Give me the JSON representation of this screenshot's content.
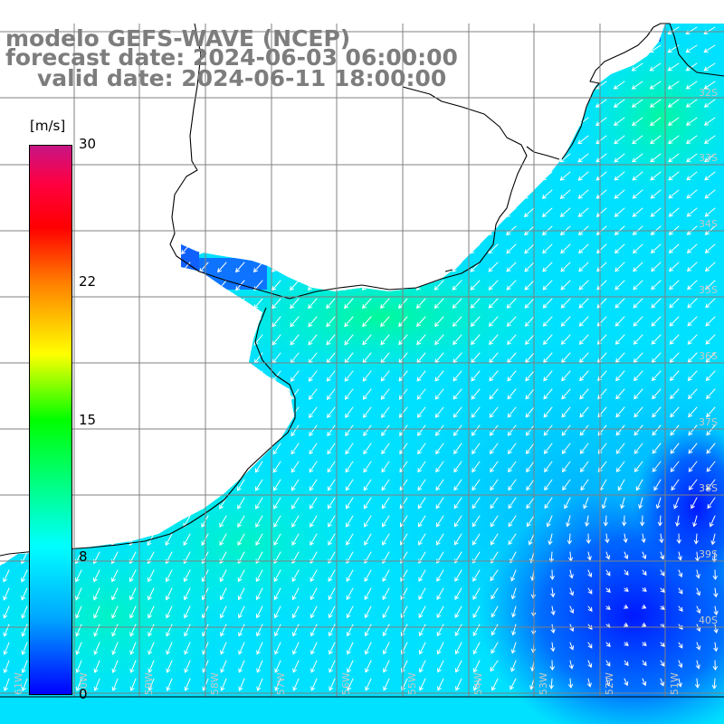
{
  "title": {
    "model": "modelo GEFS-WAVE (NCEP)",
    "forecast": "forecast date: 2024-06-03 06:00:00",
    "valid": "valid date: 2024-06-11 18:00:00"
  },
  "colorbar": {
    "unit": "[m/s]",
    "min": 0,
    "max": 30,
    "ticks": [
      {
        "value": 30,
        "label": "30"
      },
      {
        "value": 22,
        "label": "22"
      },
      {
        "value": 15,
        "label": "15"
      },
      {
        "value": 8,
        "label": "8"
      },
      {
        "value": 0,
        "label": "0"
      }
    ],
    "colors": [
      "#0000ff",
      "#00a8ff",
      "#00ffff",
      "#00ff00",
      "#ffff00",
      "#ff7f00",
      "#ff0000",
      "#c71585"
    ]
  },
  "map": {
    "latitude_labels": [
      "32S",
      "33S",
      "34S",
      "35S",
      "36S",
      "37S",
      "38S",
      "39S",
      "40S"
    ],
    "longitude_labels": [
      "61W",
      "60W",
      "59W",
      "58W",
      "57W",
      "56W",
      "55W",
      "54W",
      "53W",
      "52W",
      "51W"
    ],
    "land_color": "#ffffff",
    "gridline_color": "#808080",
    "wind_direction": "southwest"
  }
}
